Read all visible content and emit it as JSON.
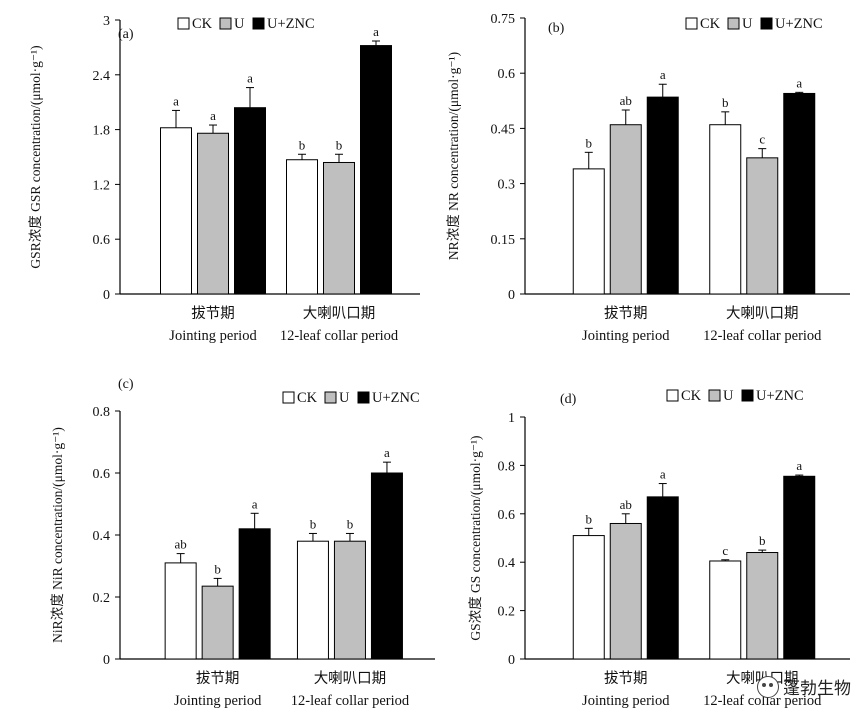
{
  "legend_labels": [
    "CK",
    "U",
    "U+ZNC"
  ],
  "colors": {
    "CK": "#ffffff",
    "U": "#bfbfbf",
    "U+ZNC": "#000000",
    "axis": "#000000"
  },
  "watermark": {
    "text": "蓬勃生物",
    "icon": "wechat-icon"
  },
  "chart_data": [
    {
      "type": "bar",
      "panel_label": "(a)",
      "ylabel": "GSR浓度 GSR concentration/(μmol·g⁻¹)",
      "ylim": [
        0,
        3
      ],
      "yticks": [
        "0",
        "0.6",
        "1.2",
        "1.8",
        "2.4",
        "3"
      ],
      "categories": [
        "拔节期",
        "大喇叭口期"
      ],
      "categories_en": [
        "Jointing period",
        "12-leaf collar period"
      ],
      "series": [
        {
          "name": "CK",
          "values": [
            1.82,
            1.47
          ],
          "errors": [
            0.19,
            0.06
          ],
          "letters": [
            "a",
            "b"
          ]
        },
        {
          "name": "U",
          "values": [
            1.76,
            1.44
          ],
          "errors": [
            0.09,
            0.09
          ],
          "letters": [
            "a",
            "b"
          ]
        },
        {
          "name": "U+ZNC",
          "values": [
            2.04,
            2.72
          ],
          "errors": [
            0.22,
            0.05
          ],
          "letters": [
            "a",
            "a"
          ]
        }
      ]
    },
    {
      "type": "bar",
      "panel_label": "(b)",
      "ylabel": "NR浓度 NR concentration/(μmol·g⁻¹)",
      "ylim": [
        0,
        0.75
      ],
      "yticks": [
        "0",
        "0.15",
        "0.3",
        "0.45",
        "0.6",
        "0.75"
      ],
      "categories": [
        "拔节期",
        "大喇叭口期"
      ],
      "categories_en": [
        "Jointing period",
        "12-leaf collar period"
      ],
      "series": [
        {
          "name": "CK",
          "values": [
            0.34,
            0.46
          ],
          "errors": [
            0.045,
            0.035
          ],
          "letters": [
            "b",
            "b"
          ]
        },
        {
          "name": "U",
          "values": [
            0.46,
            0.37
          ],
          "errors": [
            0.04,
            0.025
          ],
          "letters": [
            "ab",
            "c"
          ]
        },
        {
          "name": "U+ZNC",
          "values": [
            0.535,
            0.545
          ],
          "errors": [
            0.035,
            0.003
          ],
          "letters": [
            "a",
            "a"
          ]
        }
      ]
    },
    {
      "type": "bar",
      "panel_label": "(c)",
      "ylabel": "NiR浓度 NiR concentration/(μmol·g⁻¹)",
      "ylim": [
        0,
        0.8
      ],
      "yticks": [
        "0",
        "0.2",
        "0.4",
        "0.6",
        "0.8"
      ],
      "categories": [
        "拔节期",
        "大喇叭口期"
      ],
      "categories_en": [
        "Jointing period",
        "12-leaf collar period"
      ],
      "series": [
        {
          "name": "CK",
          "values": [
            0.31,
            0.38
          ],
          "errors": [
            0.03,
            0.025
          ],
          "letters": [
            "ab",
            "b"
          ]
        },
        {
          "name": "U",
          "values": [
            0.235,
            0.38
          ],
          "errors": [
            0.025,
            0.025
          ],
          "letters": [
            "b",
            "b"
          ]
        },
        {
          "name": "U+ZNC",
          "values": [
            0.42,
            0.6
          ],
          "errors": [
            0.05,
            0.035
          ],
          "letters": [
            "a",
            "a"
          ]
        }
      ]
    },
    {
      "type": "bar",
      "panel_label": "(d)",
      "ylabel": "GS浓度 GS concentration/(μmol·g⁻¹)",
      "ylim": [
        0,
        1
      ],
      "yticks": [
        "0",
        "0.2",
        "0.4",
        "0.6",
        "0.8",
        "1"
      ],
      "categories": [
        "拔节期",
        "大喇叭口期"
      ],
      "categories_en": [
        "Jointing period",
        "12-leaf collar period"
      ],
      "series": [
        {
          "name": "CK",
          "values": [
            0.51,
            0.405
          ],
          "errors": [
            0.03,
            0.005
          ],
          "letters": [
            "b",
            "c"
          ]
        },
        {
          "name": "U",
          "values": [
            0.56,
            0.44
          ],
          "errors": [
            0.04,
            0.01
          ],
          "letters": [
            "ab",
            "b"
          ]
        },
        {
          "name": "U+ZNC",
          "values": [
            0.67,
            0.755
          ],
          "errors": [
            0.055,
            0.005
          ],
          "letters": [
            "a",
            "a"
          ]
        }
      ]
    }
  ]
}
